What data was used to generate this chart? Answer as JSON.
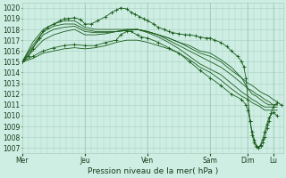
{
  "bg_color": "#ceeee4",
  "grid_color": "#a8cfc0",
  "line_color": "#1a5c1a",
  "xlim": [
    0,
    125
  ],
  "ylim": [
    1006.5,
    1020.5
  ],
  "yticks": [
    1007,
    1008,
    1009,
    1010,
    1011,
    1012,
    1013,
    1014,
    1015,
    1016,
    1017,
    1018,
    1019,
    1020
  ],
  "xtick_positions": [
    0,
    30,
    60,
    90,
    108,
    120
  ],
  "xtick_labels": [
    "Mer",
    "Jeu",
    "Ven",
    "Sam",
    "Dim",
    "Lu"
  ],
  "xlabel": "Pression niveau de la mer( hPa )",
  "vline_positions": [
    30,
    60,
    90,
    108,
    120
  ],
  "series": [
    [
      0,
      1015.0,
      3,
      1015.5,
      5,
      1016.2,
      8,
      1017.2,
      10,
      1017.8,
      12,
      1018.2,
      15,
      1018.5,
      18,
      1018.8,
      20,
      1019.0,
      22,
      1019.0,
      25,
      1019.1,
      28,
      1018.9,
      30,
      1018.5,
      33,
      1018.5,
      36,
      1018.8,
      40,
      1019.2,
      43,
      1019.6,
      45,
      1019.8,
      47,
      1020.0,
      50,
      1019.9,
      52,
      1019.6,
      54,
      1019.4,
      56,
      1019.2,
      58,
      1019.0,
      60,
      1018.8,
      63,
      1018.5,
      65,
      1018.2,
      68,
      1018.0,
      70,
      1017.8,
      72,
      1017.7,
      75,
      1017.6,
      78,
      1017.5,
      80,
      1017.5,
      83,
      1017.4,
      85,
      1017.3,
      88,
      1017.2,
      90,
      1017.2,
      92,
      1017.0,
      95,
      1016.8,
      98,
      1016.4,
      100,
      1016.0,
      103,
      1015.5,
      105,
      1015.0,
      106,
      1014.5,
      107,
      1013.5,
      108,
      1011.5,
      109,
      1009.5,
      110,
      1008.2,
      111,
      1007.5,
      112,
      1007.1,
      113,
      1007.0,
      114,
      1007.2,
      115,
      1007.5,
      116,
      1008.0,
      117,
      1008.8,
      118,
      1009.5,
      119,
      1010.2,
      120,
      1010.8,
      122,
      1011.2,
      124,
      1011.0
    ],
    [
      0,
      1015.0,
      5,
      1016.0,
      10,
      1017.0,
      15,
      1017.5,
      20,
      1017.8,
      25,
      1018.0,
      30,
      1017.5,
      35,
      1017.5,
      40,
      1017.6,
      45,
      1017.8,
      50,
      1018.0,
      55,
      1018.0,
      60,
      1017.8,
      65,
      1017.5,
      70,
      1017.2,
      75,
      1016.8,
      80,
      1016.5,
      85,
      1016.0,
      90,
      1015.8,
      95,
      1015.2,
      100,
      1014.5,
      105,
      1013.5,
      108,
      1012.5,
      110,
      1012.0,
      112,
      1011.8,
      114,
      1011.5,
      116,
      1011.2,
      118,
      1011.0,
      120,
      1011.0,
      122,
      1011.0
    ],
    [
      0,
      1015.0,
      5,
      1016.3,
      10,
      1017.5,
      15,
      1018.0,
      20,
      1018.2,
      25,
      1018.3,
      30,
      1017.8,
      35,
      1017.7,
      40,
      1017.7,
      45,
      1017.8,
      50,
      1017.9,
      55,
      1018.0,
      60,
      1017.8,
      65,
      1017.5,
      70,
      1017.2,
      75,
      1016.8,
      80,
      1016.3,
      85,
      1015.8,
      90,
      1015.5,
      95,
      1015.0,
      100,
      1014.2,
      105,
      1013.5,
      108,
      1013.0,
      110,
      1012.8,
      112,
      1012.5,
      114,
      1012.2,
      116,
      1012.0,
      118,
      1011.8,
      120,
      1011.5,
      122,
      1011.3
    ],
    [
      0,
      1015.0,
      5,
      1016.5,
      10,
      1017.8,
      15,
      1018.3,
      20,
      1018.5,
      25,
      1018.5,
      30,
      1018.0,
      35,
      1017.8,
      40,
      1017.8,
      45,
      1017.8,
      50,
      1017.9,
      55,
      1018.0,
      60,
      1017.8,
      65,
      1017.5,
      70,
      1017.0,
      75,
      1016.5,
      80,
      1016.0,
      85,
      1015.5,
      90,
      1015.0,
      95,
      1014.5,
      100,
      1013.8,
      105,
      1013.0,
      108,
      1012.5,
      110,
      1012.3,
      112,
      1012.0,
      114,
      1011.8,
      116,
      1011.5,
      118,
      1011.3,
      120,
      1011.0,
      122,
      1011.0
    ],
    [
      0,
      1015.0,
      5,
      1016.8,
      10,
      1018.0,
      15,
      1018.5,
      20,
      1018.8,
      25,
      1018.8,
      30,
      1018.2,
      35,
      1018.0,
      40,
      1018.0,
      45,
      1018.0,
      50,
      1018.0,
      55,
      1018.0,
      60,
      1017.7,
      65,
      1017.3,
      70,
      1016.8,
      75,
      1016.2,
      80,
      1015.5,
      85,
      1014.8,
      90,
      1014.3,
      95,
      1013.8,
      100,
      1013.0,
      105,
      1012.2,
      108,
      1011.8,
      110,
      1011.5,
      112,
      1011.3,
      114,
      1011.0,
      116,
      1010.8,
      118,
      1010.8,
      120,
      1010.8,
      122,
      1010.8
    ],
    [
      0,
      1015.0,
      5,
      1015.5,
      10,
      1016.0,
      15,
      1016.3,
      20,
      1016.5,
      25,
      1016.6,
      30,
      1016.5,
      35,
      1016.5,
      40,
      1016.8,
      45,
      1017.0,
      47,
      1017.5,
      50,
      1017.8,
      52,
      1017.8,
      55,
      1017.5,
      57,
      1017.3,
      60,
      1017.2,
      65,
      1016.8,
      70,
      1016.3,
      75,
      1015.8,
      80,
      1015.0,
      85,
      1014.2,
      90,
      1013.5,
      95,
      1012.8,
      100,
      1012.0,
      105,
      1011.5,
      107,
      1011.0,
      108,
      1010.5,
      109,
      1009.5,
      110,
      1008.5,
      111,
      1007.8,
      112,
      1007.2,
      113,
      1007.0,
      114,
      1007.3,
      115,
      1007.8,
      116,
      1008.5,
      117,
      1009.2,
      118,
      1009.8,
      120,
      1010.3,
      122,
      1010.0
    ],
    [
      0,
      1015.0,
      5,
      1015.3,
      10,
      1015.8,
      15,
      1016.0,
      20,
      1016.2,
      25,
      1016.3,
      30,
      1016.2,
      35,
      1016.3,
      40,
      1016.5,
      45,
      1016.8,
      50,
      1017.0,
      55,
      1017.0,
      60,
      1016.8,
      65,
      1016.5,
      70,
      1016.2,
      75,
      1015.8,
      80,
      1015.2,
      85,
      1014.5,
      90,
      1014.0,
      95,
      1013.3,
      100,
      1012.5,
      105,
      1011.8,
      108,
      1011.5,
      110,
      1011.2,
      112,
      1011.0,
      114,
      1010.8,
      116,
      1010.5,
      118,
      1010.5,
      120,
      1010.5,
      122,
      1010.5
    ]
  ],
  "marker_series": [
    0,
    5
  ],
  "tick_fontsize": 5.5,
  "label_fontsize": 6.5
}
